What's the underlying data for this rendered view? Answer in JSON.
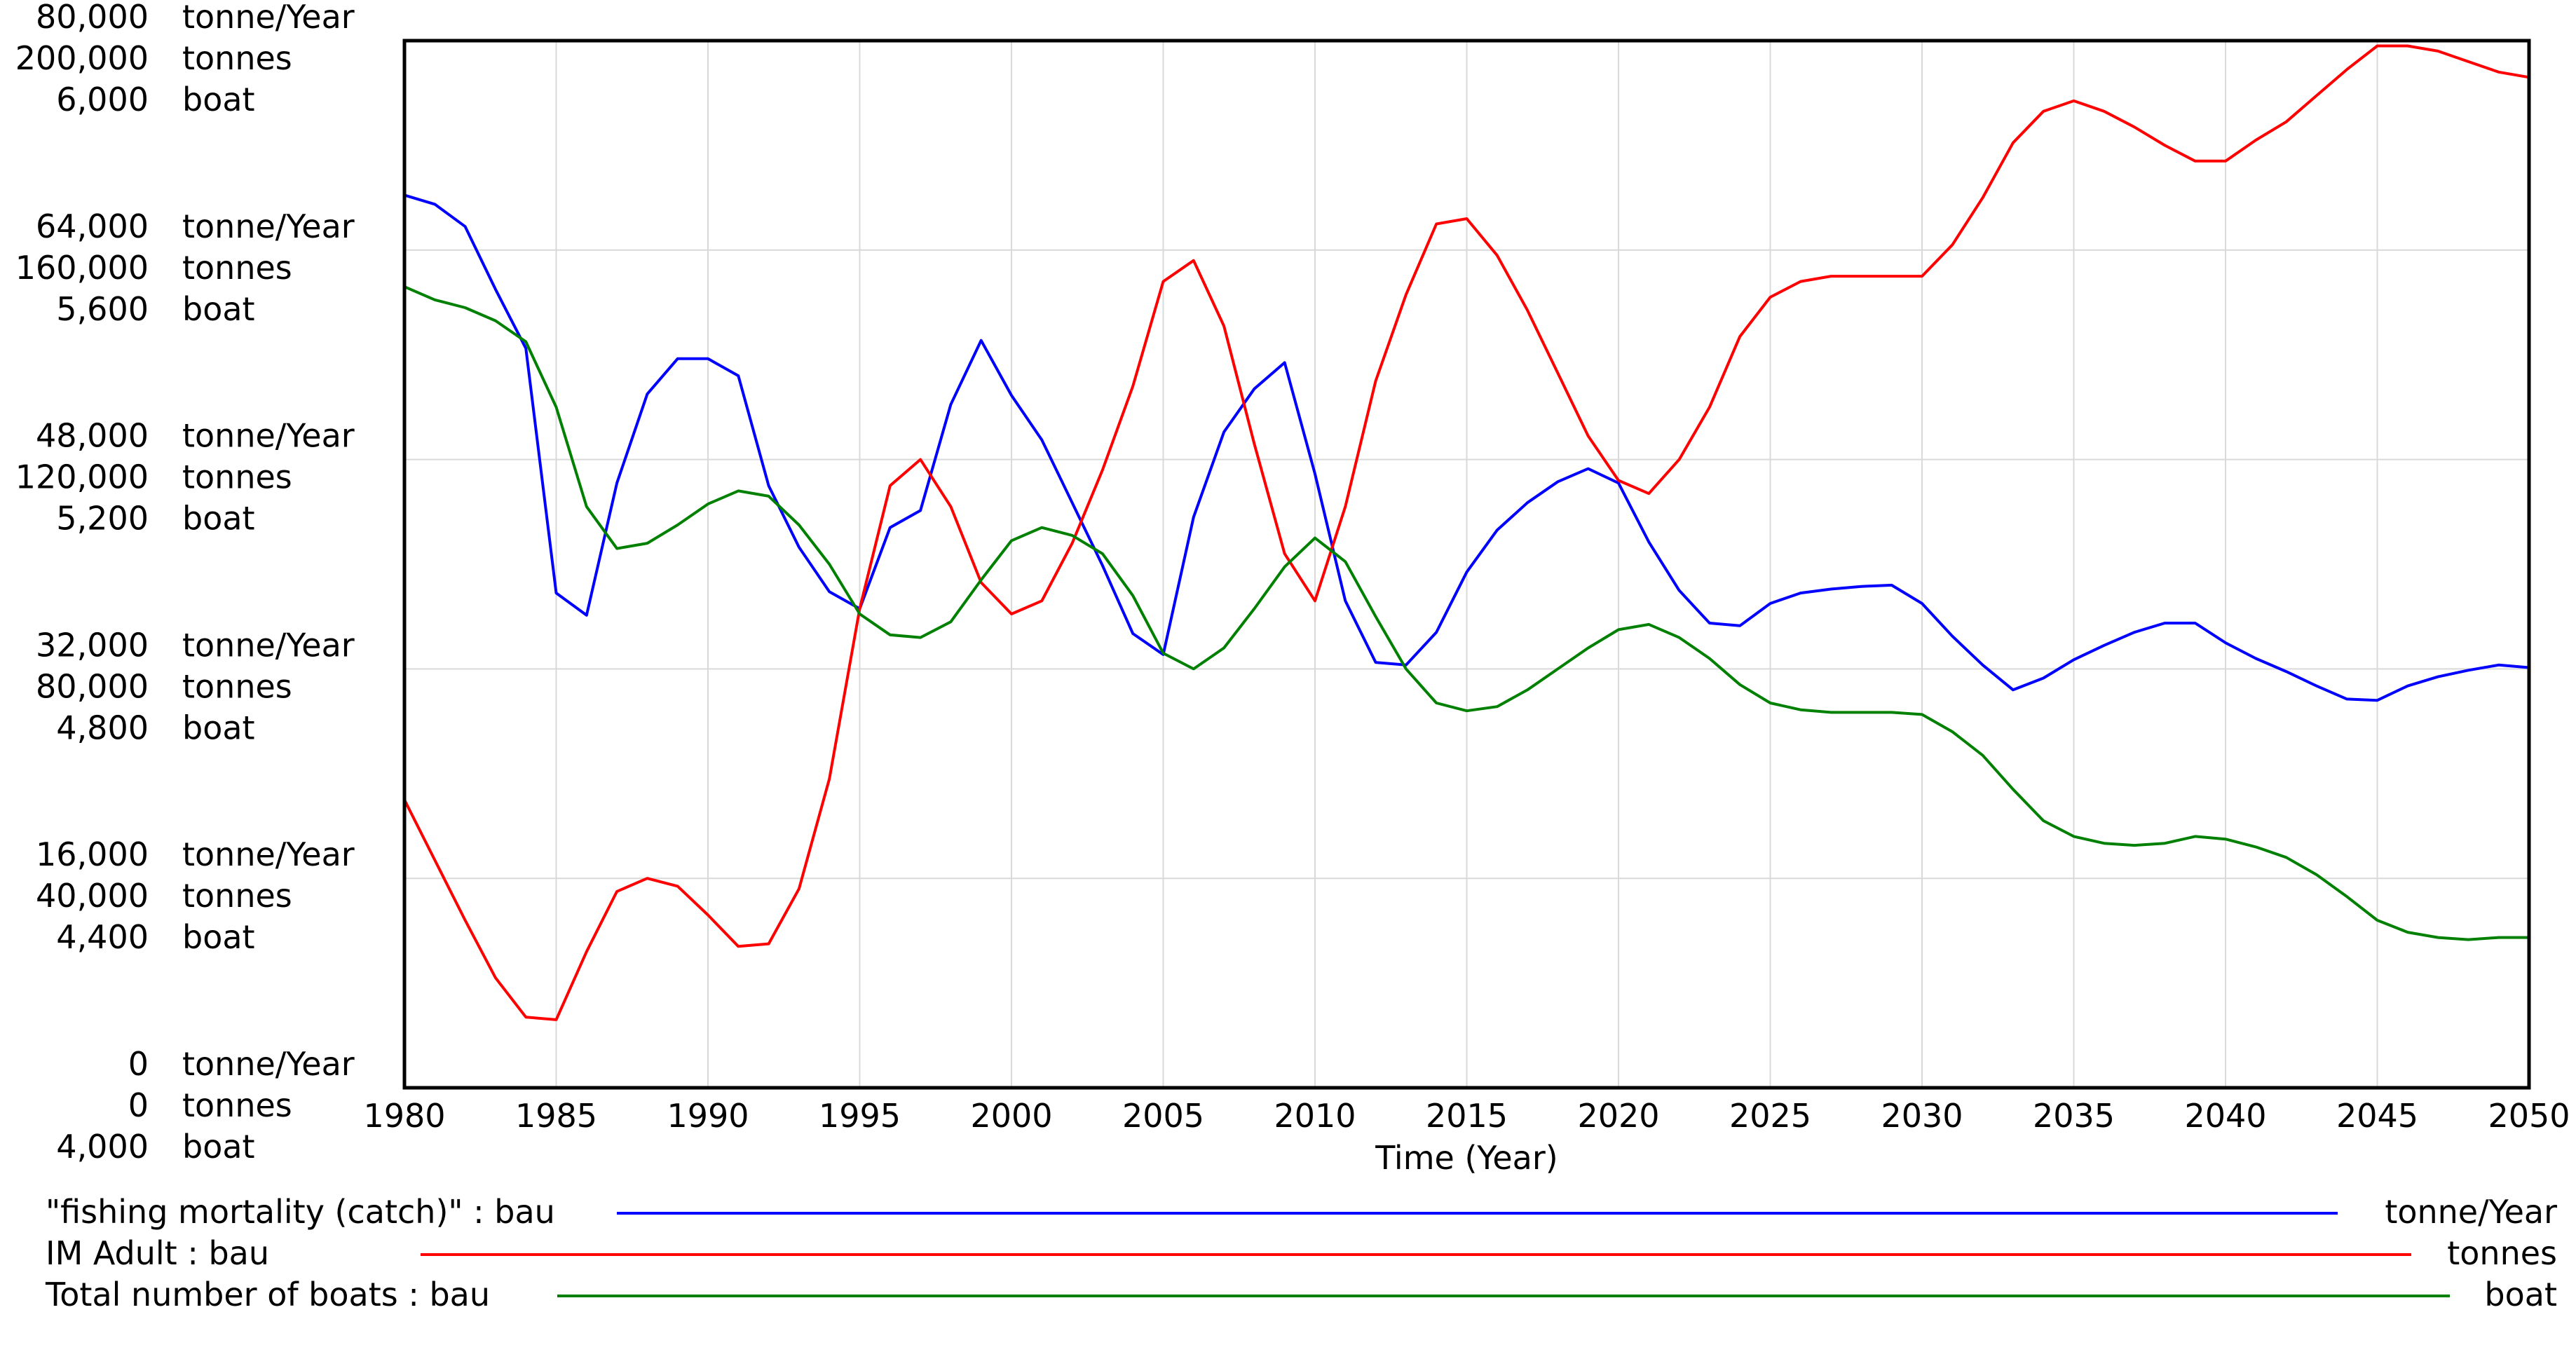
{
  "chart_data": {
    "type": "line",
    "xlabel": "Time (Year)",
    "xlim": [
      1980,
      2050
    ],
    "x_ticks": [
      "1980",
      "1985",
      "1990",
      "1995",
      "2000",
      "2005",
      "2010",
      "2015",
      "2020",
      "2025",
      "2030",
      "2035",
      "2040",
      "2045",
      "2050"
    ],
    "grid": true,
    "legend_placement": "bottom",
    "y_axes": [
      {
        "unit": "tonne/Year",
        "lim": [
          0,
          80000
        ],
        "ticks": [
          "80,000",
          "64,000",
          "48,000",
          "32,000",
          "16,000",
          "0"
        ]
      },
      {
        "unit": "tonnes",
        "lim": [
          0,
          200000
        ],
        "ticks": [
          "200,000",
          "160,000",
          "120,000",
          "80,000",
          "40,000",
          "0"
        ]
      },
      {
        "unit": "boat",
        "lim": [
          4000,
          6000
        ],
        "ticks": [
          "6,000",
          "5,600",
          "5,200",
          "4,800",
          "4,400",
          "4,000"
        ]
      }
    ],
    "series": [
      {
        "name": "\"fishing mortality (catch)\" : bau",
        "unit": "tonne/Year",
        "color": "#0000ff",
        "x": [
          1980,
          1981,
          1982,
          1983,
          1984,
          1985,
          1986,
          1987,
          1988,
          1989,
          1990,
          1991,
          1992,
          1993,
          1994,
          1995,
          1996,
          1997,
          1998,
          1999,
          2000,
          2001,
          2002,
          2003,
          2004,
          2005,
          2006,
          2007,
          2008,
          2009,
          2010,
          2011,
          2012,
          2013,
          2014,
          2015,
          2016,
          2017,
          2018,
          2019,
          2020,
          2021,
          2022,
          2023,
          2024,
          2025,
          2026,
          2027,
          2028,
          2029,
          2030,
          2031,
          2032,
          2033,
          2034,
          2035,
          2036,
          2037,
          2038,
          2039,
          2040,
          2041,
          2042,
          2043,
          2044,
          2045,
          2046,
          2047,
          2048,
          2049,
          2050
        ],
        "y": [
          68200,
          67500,
          65800,
          61000,
          56500,
          37800,
          36100,
          46200,
          53000,
          55700,
          55700,
          54400,
          46000,
          41300,
          37900,
          36600,
          42800,
          44100,
          52200,
          57100,
          52900,
          49500,
          44700,
          39900,
          34700,
          33100,
          43600,
          50100,
          53400,
          55400,
          46900,
          37200,
          32500,
          32300,
          34800,
          39400,
          42600,
          44700,
          46300,
          47300,
          46200,
          41700,
          38000,
          35500,
          35300,
          37000,
          37800,
          38100,
          38300,
          38400,
          37000,
          34500,
          32300,
          30400,
          31300,
          32700,
          33800,
          34800,
          35500,
          35500,
          34000,
          32800,
          31800,
          30700,
          29700,
          29600,
          30700,
          31400,
          31900,
          32300,
          32100
        ]
      },
      {
        "name": "IM Adult : bau",
        "unit": "tonnes",
        "color": "#ff0000",
        "x": [
          1980,
          1981,
          1982,
          1983,
          1984,
          1985,
          1986,
          1987,
          1988,
          1989,
          1990,
          1991,
          1992,
          1993,
          1994,
          1995,
          1996,
          1997,
          1998,
          1999,
          2000,
          2001,
          2002,
          2003,
          2004,
          2005,
          2006,
          2007,
          2008,
          2009,
          2010,
          2011,
          2012,
          2013,
          2014,
          2015,
          2016,
          2017,
          2018,
          2019,
          2020,
          2021,
          2022,
          2023,
          2024,
          2025,
          2026,
          2027,
          2028,
          2029,
          2030,
          2031,
          2032,
          2033,
          2034,
          2035,
          2036,
          2037,
          2038,
          2039,
          2040,
          2041,
          2042,
          2043,
          2044,
          2045,
          2046,
          2047,
          2048,
          2049,
          2050
        ],
        "y": [
          55000,
          43500,
          32000,
          21000,
          13500,
          13000,
          26000,
          37500,
          40000,
          38500,
          33000,
          27000,
          27500,
          38000,
          59000,
          91500,
          115000,
          120000,
          111000,
          96500,
          90500,
          93000,
          104000,
          118000,
          134000,
          154000,
          158000,
          145500,
          123000,
          102000,
          93000,
          111000,
          135000,
          151500,
          165000,
          166000,
          159000,
          148500,
          136500,
          124500,
          116000,
          113500,
          120000,
          130000,
          143500,
          151000,
          154000,
          155000,
          155000,
          155000,
          155000,
          161000,
          170000,
          180500,
          186500,
          188500,
          186500,
          183500,
          180000,
          177000,
          177000,
          181000,
          184500,
          189500,
          194500,
          199000,
          199000,
          198000,
          196000,
          194000,
          193000
        ]
      },
      {
        "name": "Total number of boats : bau",
        "unit": "boat",
        "color": "#008000",
        "x": [
          1980,
          1981,
          1982,
          1983,
          1984,
          1985,
          1986,
          1987,
          1988,
          1989,
          1990,
          1991,
          1992,
          1993,
          1994,
          1995,
          1996,
          1997,
          1998,
          1999,
          2000,
          2001,
          2002,
          2003,
          2004,
          2005,
          2006,
          2007,
          2008,
          2009,
          2010,
          2011,
          2012,
          2013,
          2014,
          2015,
          2016,
          2017,
          2018,
          2019,
          2020,
          2021,
          2022,
          2023,
          2024,
          2025,
          2026,
          2027,
          2028,
          2029,
          2030,
          2031,
          2032,
          2033,
          2034,
          2035,
          2036,
          2037,
          2038,
          2039,
          2040,
          2041,
          2042,
          2043,
          2044,
          2045,
          2046,
          2047,
          2048,
          2049,
          2050
        ],
        "y": [
          5530,
          5505,
          5490,
          5465,
          5425,
          5300,
          5110,
          5030,
          5040,
          5075,
          5115,
          5140,
          5130,
          5075,
          5000,
          4905,
          4865,
          4860,
          4890,
          4970,
          5045,
          5070,
          5055,
          5020,
          4940,
          4830,
          4800,
          4840,
          4915,
          4995,
          5050,
          5005,
          4900,
          4800,
          4735,
          4720,
          4728,
          4760,
          4800,
          4840,
          4875,
          4885,
          4860,
          4820,
          4770,
          4735,
          4722,
          4717,
          4717,
          4717,
          4713,
          4680,
          4635,
          4570,
          4510,
          4480,
          4467,
          4463,
          4467,
          4480,
          4475,
          4460,
          4440,
          4407,
          4365,
          4320,
          4297,
          4287,
          4283,
          4287,
          4287
        ]
      }
    ]
  }
}
